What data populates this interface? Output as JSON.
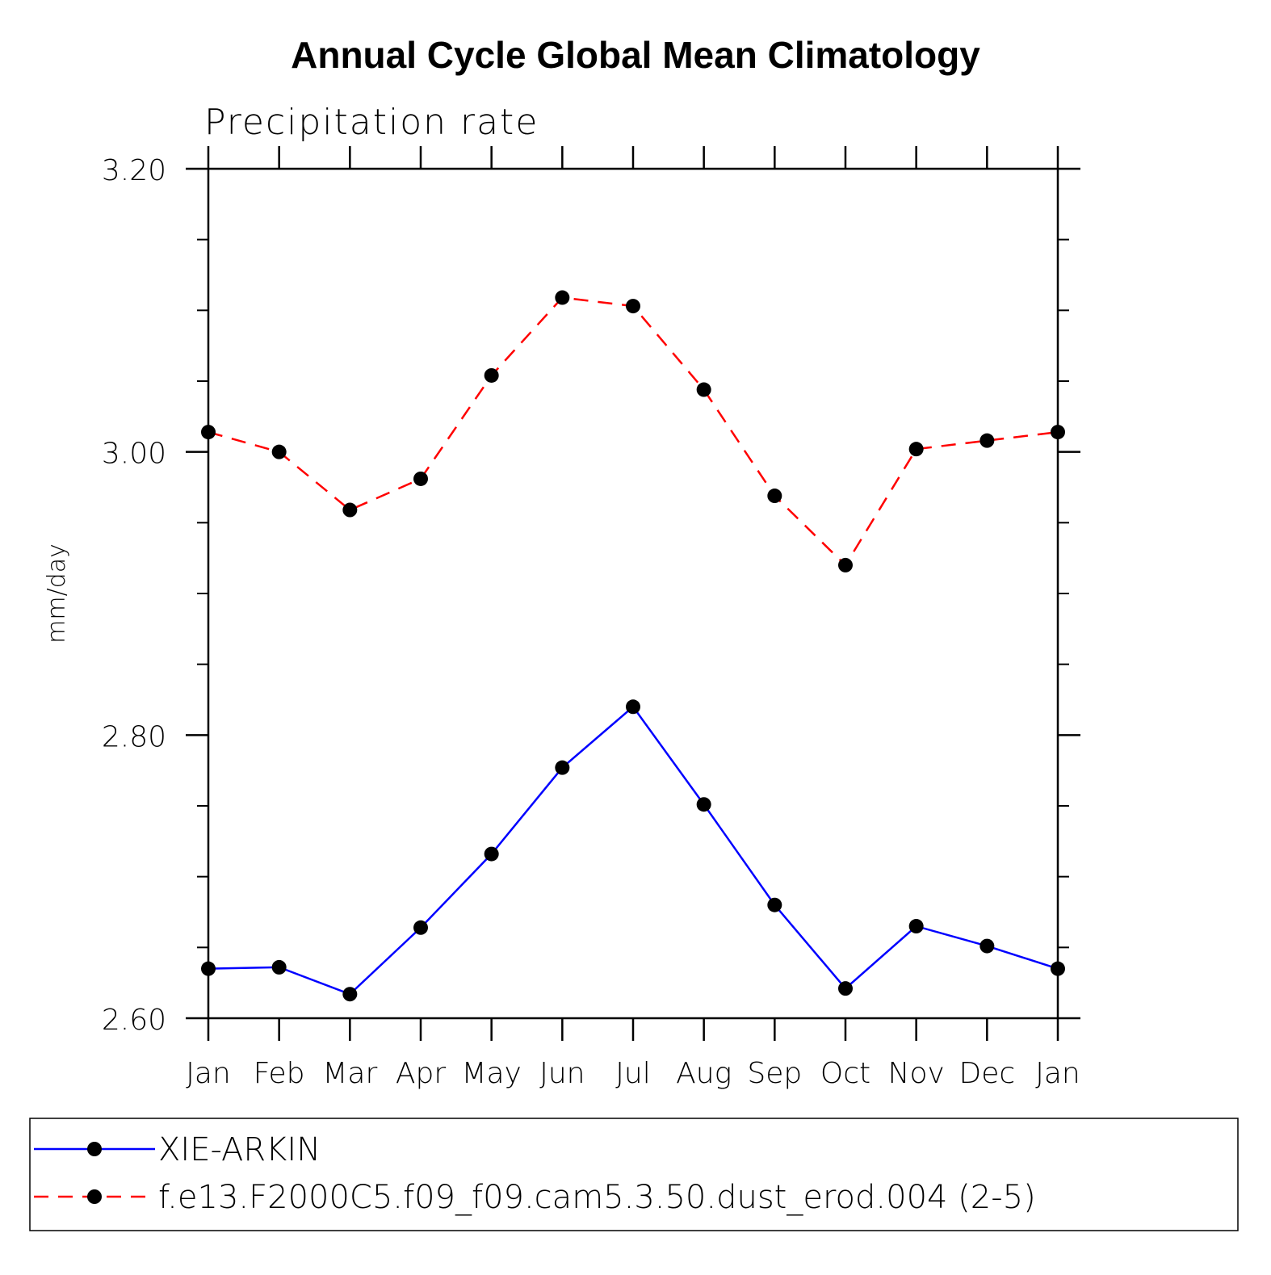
{
  "chart_data": {
    "type": "line",
    "title": "Annual Cycle Global Mean Climatology",
    "subtitle": "Precipitation rate",
    "xlabel": "",
    "ylabel": "mm/day",
    "categories": [
      "Jan",
      "Feb",
      "Mar",
      "Apr",
      "May",
      "Jun",
      "Jul",
      "Aug",
      "Sep",
      "Oct",
      "Nov",
      "Dec",
      "Jan"
    ],
    "ylim": [
      2.6,
      3.2
    ],
    "yticks": [
      "2.60",
      "2.80",
      "3.00",
      "3.20"
    ],
    "ytick_values": [
      2.6,
      2.8,
      3.0,
      3.2
    ],
    "minor_step": 0.05,
    "grid": false,
    "legend_position": "bottom",
    "series": [
      {
        "name": "XIE-ARKIN",
        "color": "#0000ff",
        "dash": "solid",
        "values": [
          2.635,
          2.636,
          2.617,
          2.664,
          2.716,
          2.777,
          2.82,
          2.751,
          2.68,
          2.621,
          2.665,
          2.651,
          2.635
        ]
      },
      {
        "name": "f.e13.F2000C5.f09_f09.cam5.3.50.dust_erod.004 (2-5)",
        "color": "#ff0000",
        "dash": "dashed",
        "values": [
          3.014,
          3.0,
          2.959,
          2.981,
          3.054,
          3.109,
          3.103,
          3.044,
          2.969,
          2.92,
          3.002,
          3.008,
          3.014
        ]
      }
    ]
  }
}
